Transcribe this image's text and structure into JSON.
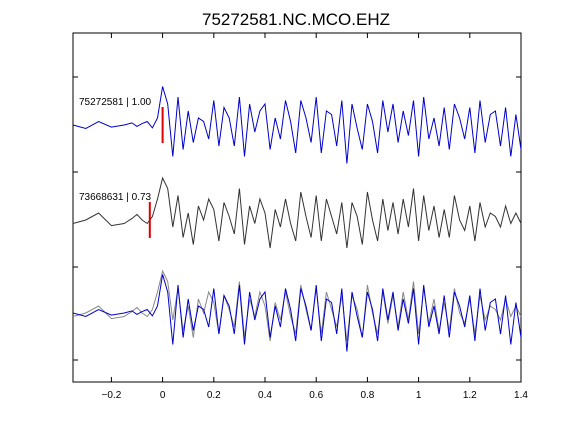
{
  "chart_data": {
    "type": "line",
    "title": "75272581.NC.MCO.EHZ",
    "xlabel": "",
    "ylabel": "",
    "xlim": [
      -0.35,
      1.4
    ],
    "x_ticks": [
      -0.2,
      0,
      0.2,
      0.4,
      0.6,
      0.8,
      1,
      1.2,
      1.4
    ],
    "x_tick_labels": [
      "−0.2",
      "0",
      "0.2",
      "0.4",
      "0.6",
      "0.8",
      "1",
      "1.2",
      "1.4"
    ],
    "grid": false,
    "traces": [
      {
        "label": "75272581 | 1.00",
        "color": "#0000cc",
        "pick_time": 0.0,
        "pick_color": "#dd0000",
        "x": [
          -0.35,
          -0.3,
          -0.25,
          -0.2,
          -0.15,
          -0.12,
          -0.1,
          -0.08,
          -0.06,
          -0.04,
          -0.02,
          0.0,
          0.02,
          0.04,
          0.06,
          0.08,
          0.1,
          0.12,
          0.14,
          0.16,
          0.18,
          0.2,
          0.22,
          0.24,
          0.26,
          0.28,
          0.3,
          0.32,
          0.34,
          0.36,
          0.38,
          0.4,
          0.42,
          0.44,
          0.46,
          0.48,
          0.5,
          0.52,
          0.54,
          0.56,
          0.58,
          0.6,
          0.62,
          0.64,
          0.66,
          0.68,
          0.7,
          0.72,
          0.74,
          0.76,
          0.78,
          0.8,
          0.82,
          0.84,
          0.86,
          0.88,
          0.9,
          0.92,
          0.94,
          0.96,
          0.98,
          1.0,
          1.02,
          1.04,
          1.06,
          1.08,
          1.1,
          1.12,
          1.14,
          1.16,
          1.18,
          1.2,
          1.22,
          1.24,
          1.26,
          1.28,
          1.3,
          1.32,
          1.34,
          1.36,
          1.38,
          1.4
        ],
        "y": [
          0.0,
          -0.05,
          0.05,
          -0.03,
          0.0,
          0.03,
          -0.02,
          0.02,
          0.05,
          -0.04,
          0.1,
          0.55,
          0.3,
          -0.45,
          0.4,
          -0.35,
          0.2,
          -0.25,
          0.1,
          0.05,
          -0.2,
          0.35,
          -0.3,
          0.25,
          0.1,
          -0.3,
          0.4,
          -0.45,
          0.3,
          -0.1,
          0.2,
          0.3,
          -0.35,
          0.1,
          -0.2,
          0.35,
          0.05,
          -0.4,
          0.35,
          0.1,
          -0.25,
          0.4,
          -0.4,
          0.2,
          0.15,
          -0.3,
          0.35,
          -0.55,
          0.3,
          -0.05,
          -0.35,
          0.3,
          0.05,
          -0.4,
          0.35,
          -0.1,
          0.3,
          -0.25,
          0.2,
          -0.15,
          0.35,
          -0.45,
          0.4,
          -0.2,
          0.1,
          -0.3,
          0.25,
          -0.35,
          0.3,
          0.1,
          -0.2,
          0.25,
          -0.4,
          0.35,
          -0.25,
          0.15,
          0.2,
          -0.3,
          0.25,
          -0.45,
          0.15,
          -0.35
        ]
      },
      {
        "label": "73668631 | 0.73",
        "color": "#333333",
        "pick_time": -0.05,
        "pick_color": "#dd0000",
        "x": [
          -0.35,
          -0.3,
          -0.25,
          -0.2,
          -0.15,
          -0.12,
          -0.1,
          -0.08,
          -0.06,
          -0.04,
          -0.02,
          0.0,
          0.02,
          0.04,
          0.06,
          0.08,
          0.1,
          0.12,
          0.14,
          0.16,
          0.18,
          0.2,
          0.22,
          0.24,
          0.26,
          0.28,
          0.3,
          0.32,
          0.34,
          0.36,
          0.38,
          0.4,
          0.42,
          0.44,
          0.46,
          0.48,
          0.5,
          0.52,
          0.54,
          0.56,
          0.58,
          0.6,
          0.62,
          0.64,
          0.66,
          0.68,
          0.7,
          0.72,
          0.74,
          0.76,
          0.78,
          0.8,
          0.82,
          0.84,
          0.86,
          0.88,
          0.9,
          0.92,
          0.94,
          0.96,
          0.98,
          1.0,
          1.02,
          1.04,
          1.06,
          1.08,
          1.1,
          1.12,
          1.14,
          1.16,
          1.18,
          1.2,
          1.22,
          1.24,
          1.26,
          1.28,
          1.3,
          1.32,
          1.34,
          1.36,
          1.38,
          1.4
        ],
        "y": [
          -0.05,
          0.0,
          0.1,
          -0.08,
          -0.05,
          0.02,
          0.08,
          0.0,
          -0.05,
          0.05,
          0.3,
          0.6,
          0.45,
          -0.1,
          0.35,
          -0.25,
          0.1,
          -0.35,
          0.2,
          0.0,
          0.3,
          0.15,
          -0.3,
          0.25,
          0.05,
          -0.2,
          0.45,
          -0.35,
          0.2,
          -0.05,
          0.3,
          0.1,
          -0.4,
          0.15,
          -0.1,
          0.3,
          -0.05,
          -0.3,
          0.4,
          0.05,
          -0.25,
          0.35,
          -0.3,
          0.3,
          0.05,
          -0.2,
          0.25,
          -0.4,
          0.25,
          0.05,
          -0.35,
          0.4,
          0.0,
          -0.3,
          0.3,
          -0.15,
          0.25,
          -0.2,
          0.3,
          -0.1,
          0.45,
          -0.3,
          0.35,
          -0.15,
          0.2,
          -0.25,
          0.15,
          -0.25,
          0.35,
          0.0,
          -0.15,
          0.2,
          -0.3,
          0.25,
          -0.1,
          0.1,
          0.05,
          -0.1,
          0.2,
          -0.05,
          0.1,
          -0.05
        ]
      },
      {
        "label": "",
        "overlay": true,
        "series_colors": [
          "#888888",
          "#0000cc"
        ]
      }
    ]
  }
}
